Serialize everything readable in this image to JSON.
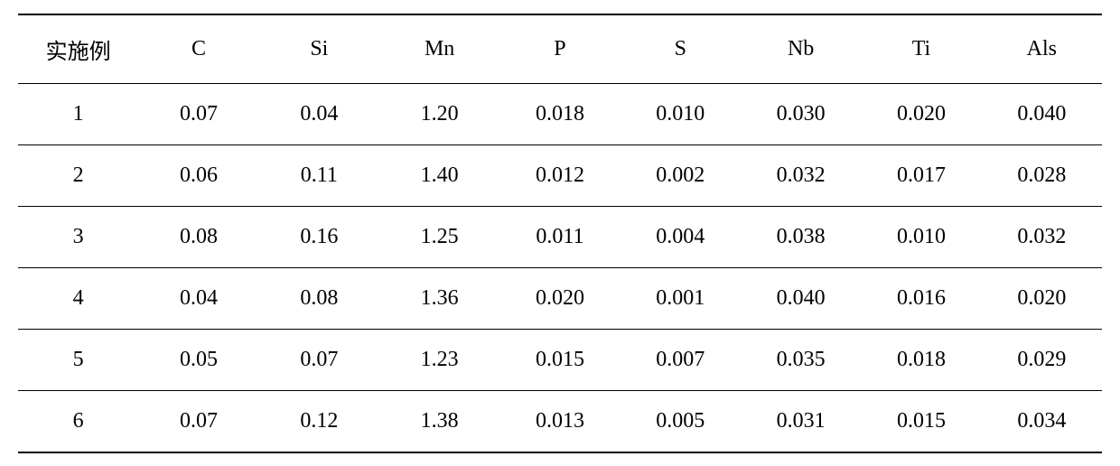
{
  "table": {
    "type": "table",
    "background_color": "#ffffff",
    "text_color": "#000000",
    "border_color": "#000000",
    "font_size": 24,
    "font_family": "SimSun, Times New Roman, serif",
    "header_border_top_width": 2,
    "header_border_bottom_width": 1.5,
    "row_border_width": 1,
    "last_row_border_width": 2,
    "cell_padding_vertical": 20,
    "cell_padding_horizontal": 8,
    "columns": [
      "实施例",
      "C",
      "Si",
      "Mn",
      "P",
      "S",
      "Nb",
      "Ti",
      "Als"
    ],
    "rows": [
      [
        "1",
        "0.07",
        "0.04",
        "1.20",
        "0.018",
        "0.010",
        "0.030",
        "0.020",
        "0.040"
      ],
      [
        "2",
        "0.06",
        "0.11",
        "1.40",
        "0.012",
        "0.002",
        "0.032",
        "0.017",
        "0.028"
      ],
      [
        "3",
        "0.08",
        "0.16",
        "1.25",
        "0.011",
        "0.004",
        "0.038",
        "0.010",
        "0.032"
      ],
      [
        "4",
        "0.04",
        "0.08",
        "1.36",
        "0.020",
        "0.001",
        "0.040",
        "0.016",
        "0.020"
      ],
      [
        "5",
        "0.05",
        "0.07",
        "1.23",
        "0.015",
        "0.007",
        "0.035",
        "0.018",
        "0.029"
      ],
      [
        "6",
        "0.07",
        "0.12",
        "1.38",
        "0.013",
        "0.005",
        "0.031",
        "0.015",
        "0.034"
      ]
    ]
  }
}
